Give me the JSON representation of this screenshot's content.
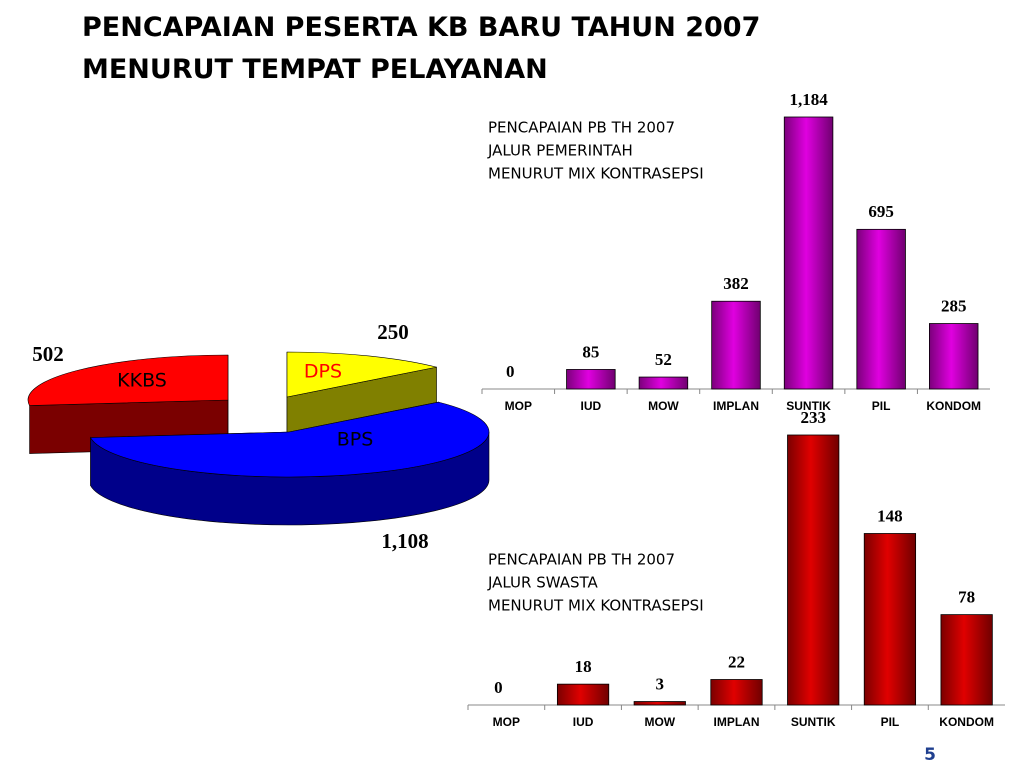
{
  "title": [
    "PENCAPAIAN PESERTA KB BARU TAHUN 2007",
    "MENURUT TEMPAT PELAYANAN"
  ],
  "page_number": 5,
  "chart_data": [
    {
      "type": "pie",
      "categories": [
        "KKBS",
        "DPS",
        "BPS"
      ],
      "values": [
        502,
        250,
        1108
      ],
      "value_labels": [
        "502",
        "250",
        "1,108"
      ],
      "colors": [
        "#ff0000",
        "#ffff00",
        "#0000ff"
      ],
      "side_colors": [
        "#7a0000",
        "#808000",
        "#00008a"
      ],
      "label_colors": [
        "#000000",
        "#ff0000",
        "#000000"
      ]
    },
    {
      "type": "bar",
      "annotation": [
        "PENCAPAIAN PB TH 2007",
        "JALUR PEMERINTAH",
        "MENURUT MIX KONTRASEPSI"
      ],
      "categories": [
        "MOP",
        "IUD",
        "MOW",
        "IMPLAN",
        "SUNTIK",
        "PIL",
        "KONDOM"
      ],
      "values": [
        0,
        85,
        52,
        382,
        1184,
        695,
        285
      ],
      "value_labels": [
        "0",
        "85",
        "52",
        "382",
        "1,184",
        "695",
        "285"
      ],
      "color": "#e000e0"
    },
    {
      "type": "bar",
      "annotation": [
        "PENCAPAIAN PB TH 2007",
        "JALUR SWASTA",
        "MENURUT MIX KONTRASEPSI"
      ],
      "categories": [
        "MOP",
        "IUD",
        "MOW",
        "IMPLAN",
        "SUNTIK",
        "PIL",
        "KONDOM"
      ],
      "values": [
        0,
        18,
        3,
        22,
        233,
        148,
        78
      ],
      "value_labels": [
        "0",
        "18",
        "3",
        "22",
        "233",
        "148",
        "78"
      ],
      "color": "#e00000"
    }
  ]
}
